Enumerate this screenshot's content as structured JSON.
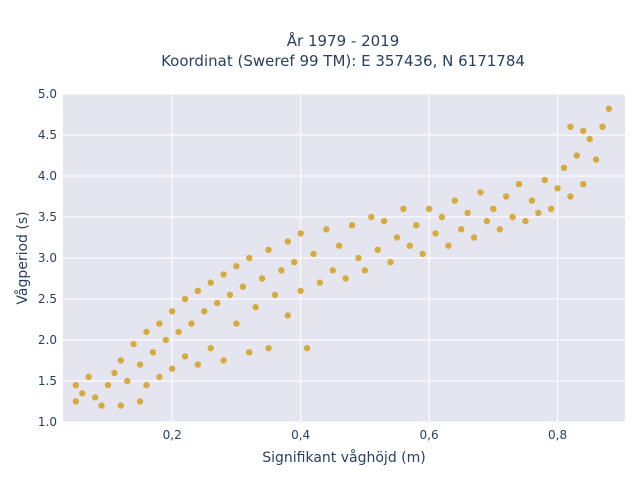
{
  "chart_data": {
    "type": "scatter",
    "title_line1": "År 1979 - 2019",
    "title_line2": "Koordinat (Sweref 99 TM): E 357436, N 6171784",
    "xlabel": "Signifikant våghöjd (m)",
    "ylabel": "Vågperiod (s)",
    "xlim": [
      0.03,
      0.905
    ],
    "ylim": [
      1.0,
      5.0
    ],
    "x_ticks": [
      0.2,
      0.4,
      0.6,
      0.8
    ],
    "x_tick_labels": [
      "0,2",
      "0,4",
      "0,6",
      "0,8"
    ],
    "y_ticks": [
      1.0,
      1.5,
      2.0,
      2.5,
      3.0,
      3.5,
      4.0,
      4.5,
      5.0
    ],
    "y_tick_labels": [
      "1.0",
      "1.5",
      "2.0",
      "2.5",
      "3.0",
      "3.5",
      "4.0",
      "4.5",
      "5.0"
    ],
    "grid": true,
    "plot_bgcolor": "#e5e5f0",
    "marker_color": "#d4a11f",
    "series": [
      {
        "points": [
          [
            0.05,
            1.25
          ],
          [
            0.05,
            1.45
          ],
          [
            0.06,
            1.35
          ],
          [
            0.07,
            1.55
          ],
          [
            0.08,
            1.3
          ],
          [
            0.09,
            1.2
          ],
          [
            0.1,
            1.45
          ],
          [
            0.11,
            1.6
          ],
          [
            0.12,
            1.2
          ],
          [
            0.12,
            1.75
          ],
          [
            0.13,
            1.5
          ],
          [
            0.14,
            1.95
          ],
          [
            0.15,
            1.25
          ],
          [
            0.15,
            1.7
          ],
          [
            0.16,
            2.1
          ],
          [
            0.16,
            1.45
          ],
          [
            0.17,
            1.85
          ],
          [
            0.18,
            2.2
          ],
          [
            0.18,
            1.55
          ],
          [
            0.19,
            2.0
          ],
          [
            0.2,
            2.35
          ],
          [
            0.2,
            1.65
          ],
          [
            0.21,
            2.1
          ],
          [
            0.22,
            1.8
          ],
          [
            0.22,
            2.5
          ],
          [
            0.23,
            2.2
          ],
          [
            0.24,
            1.7
          ],
          [
            0.24,
            2.6
          ],
          [
            0.25,
            2.35
          ],
          [
            0.26,
            1.9
          ],
          [
            0.26,
            2.7
          ],
          [
            0.27,
            2.45
          ],
          [
            0.28,
            1.75
          ],
          [
            0.28,
            2.8
          ],
          [
            0.29,
            2.55
          ],
          [
            0.3,
            2.2
          ],
          [
            0.3,
            2.9
          ],
          [
            0.31,
            2.65
          ],
          [
            0.32,
            1.85
          ],
          [
            0.32,
            3.0
          ],
          [
            0.33,
            2.4
          ],
          [
            0.34,
            2.75
          ],
          [
            0.35,
            3.1
          ],
          [
            0.35,
            1.9
          ],
          [
            0.36,
            2.55
          ],
          [
            0.37,
            2.85
          ],
          [
            0.38,
            3.2
          ],
          [
            0.38,
            2.3
          ],
          [
            0.39,
            2.95
          ],
          [
            0.4,
            3.3
          ],
          [
            0.4,
            2.6
          ],
          [
            0.41,
            1.9
          ],
          [
            0.42,
            3.05
          ],
          [
            0.43,
            2.7
          ],
          [
            0.44,
            3.35
          ],
          [
            0.45,
            2.85
          ],
          [
            0.46,
            3.15
          ],
          [
            0.47,
            2.75
          ],
          [
            0.48,
            3.4
          ],
          [
            0.49,
            3.0
          ],
          [
            0.5,
            2.85
          ],
          [
            0.51,
            3.5
          ],
          [
            0.52,
            3.1
          ],
          [
            0.53,
            3.45
          ],
          [
            0.54,
            2.95
          ],
          [
            0.55,
            3.25
          ],
          [
            0.56,
            3.6
          ],
          [
            0.57,
            3.15
          ],
          [
            0.58,
            3.4
          ],
          [
            0.59,
            3.05
          ],
          [
            0.6,
            3.6
          ],
          [
            0.61,
            3.3
          ],
          [
            0.62,
            3.5
          ],
          [
            0.63,
            3.15
          ],
          [
            0.64,
            3.7
          ],
          [
            0.65,
            3.35
          ],
          [
            0.66,
            3.55
          ],
          [
            0.67,
            3.25
          ],
          [
            0.68,
            3.8
          ],
          [
            0.69,
            3.45
          ],
          [
            0.7,
            3.6
          ],
          [
            0.71,
            3.35
          ],
          [
            0.72,
            3.75
          ],
          [
            0.73,
            3.5
          ],
          [
            0.74,
            3.9
          ],
          [
            0.75,
            3.45
          ],
          [
            0.76,
            3.7
          ],
          [
            0.77,
            3.55
          ],
          [
            0.78,
            3.95
          ],
          [
            0.79,
            3.6
          ],
          [
            0.8,
            3.85
          ],
          [
            0.81,
            4.1
          ],
          [
            0.82,
            3.75
          ],
          [
            0.83,
            4.25
          ],
          [
            0.84,
            3.9
          ],
          [
            0.85,
            4.45
          ],
          [
            0.86,
            4.2
          ],
          [
            0.87,
            4.6
          ],
          [
            0.88,
            4.82
          ],
          [
            0.84,
            4.55
          ],
          [
            0.82,
            4.6
          ]
        ]
      }
    ]
  }
}
